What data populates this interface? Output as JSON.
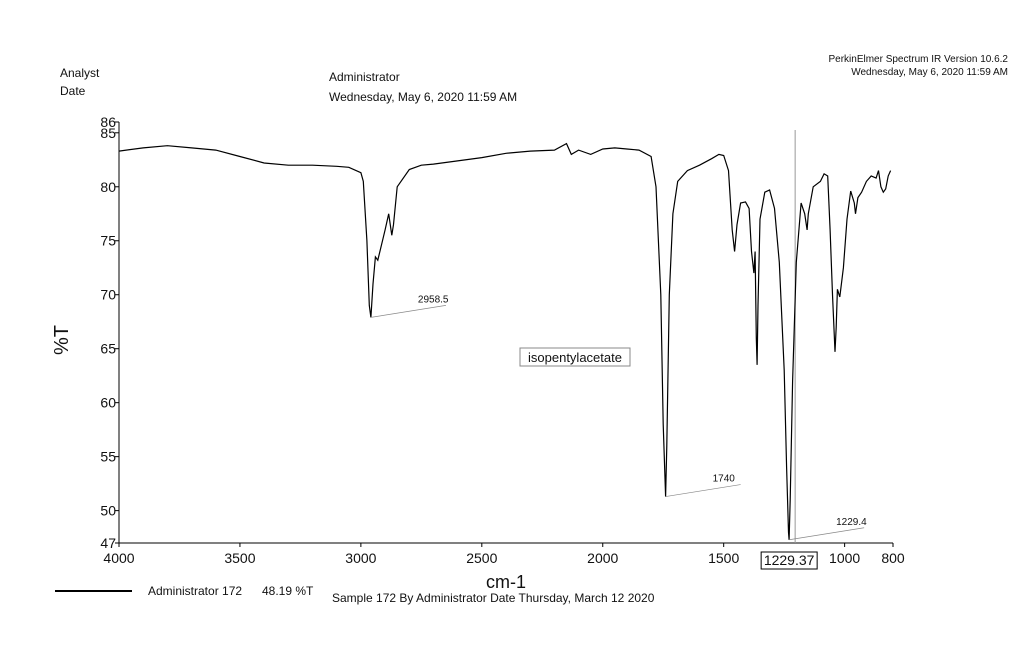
{
  "header": {
    "analyst_label": "Analyst",
    "date_label": "Date",
    "analyst": "Administrator",
    "date": "Wednesday, May 6, 2020 11:59 AM",
    "software": "PerkinElmer Spectrum IR Version 10.6.2",
    "software_date": "Wednesday, May 6, 2020 11:59 AM"
  },
  "footer": {
    "value": "48.19 %T",
    "description": "Sample 172 By Administrator Date Thursday, March 12 2020"
  },
  "chart_data": {
    "type": "line",
    "xlabel": "cm-1",
    "ylabel": "%T",
    "xlim": [
      4000,
      800
    ],
    "ylim": [
      47,
      86
    ],
    "xticks": [
      4000,
      3500,
      3000,
      2500,
      2000,
      1500,
      1000,
      800
    ],
    "yticks": [
      47,
      50,
      55,
      60,
      65,
      70,
      75,
      80,
      85,
      86
    ],
    "grid": false,
    "x": [
      4000,
      3900,
      3800,
      3700,
      3600,
      3500,
      3400,
      3300,
      3200,
      3100,
      3050,
      3000,
      2990,
      2975,
      2965,
      2958.5,
      2950,
      2940,
      2930,
      2900,
      2885,
      2872,
      2865,
      2850,
      2800,
      2750,
      2700,
      2600,
      2500,
      2400,
      2300,
      2200,
      2150,
      2130,
      2100,
      2050,
      2000,
      1950,
      1900,
      1850,
      1800,
      1780,
      1760,
      1750,
      1740,
      1735,
      1725,
      1710,
      1690,
      1650,
      1600,
      1550,
      1520,
      1500,
      1480,
      1465,
      1455,
      1445,
      1430,
      1410,
      1395,
      1385,
      1375,
      1370,
      1365,
      1362,
      1358,
      1350,
      1330,
      1310,
      1290,
      1270,
      1250,
      1240,
      1232,
      1229.4,
      1225,
      1215,
      1200,
      1180,
      1165,
      1155,
      1150,
      1130,
      1100,
      1085,
      1070,
      1060,
      1050,
      1040,
      1035,
      1030,
      1020,
      1005,
      990,
      975,
      960,
      955,
      945,
      930,
      910,
      890,
      870,
      860,
      850,
      840,
      830,
      820,
      810
    ],
    "series": [
      {
        "name": "Administrator 172",
        "color": "#000000",
        "values": [
          83.3,
          83.6,
          83.8,
          83.6,
          83.4,
          82.8,
          82.2,
          82.0,
          82.0,
          81.9,
          81.8,
          81.3,
          80.5,
          75,
          69,
          67.9,
          71,
          73.5,
          73.2,
          76,
          77.5,
          75.5,
          76.5,
          80,
          81.6,
          82.0,
          82.1,
          82.4,
          82.7,
          83.1,
          83.3,
          83.4,
          84.0,
          83.0,
          83.4,
          83.0,
          83.5,
          83.6,
          83.5,
          83.4,
          82.8,
          80,
          70,
          58,
          51.3,
          56,
          70,
          77.5,
          80.5,
          81.5,
          82,
          82.6,
          83.0,
          82.9,
          81.5,
          76,
          74,
          76.5,
          78.5,
          78.6,
          78,
          74,
          72,
          74,
          66,
          63.5,
          69,
          77,
          79.5,
          79.7,
          78,
          73,
          63,
          54,
          48,
          47.3,
          51,
          62,
          73,
          78.5,
          77.5,
          76,
          77.5,
          80,
          80.5,
          81.2,
          81,
          76,
          70,
          64.7,
          67,
          70.5,
          69.8,
          72.5,
          77,
          79.6,
          78.5,
          77.5,
          79,
          79.5,
          80.5,
          81,
          80.8,
          81.5,
          80,
          79.5,
          79.8,
          81,
          81.5
        ]
      }
    ],
    "peaks": [
      {
        "x": 2958.5,
        "y": 67.9
      },
      {
        "x": 1740,
        "y": 51.3
      },
      {
        "x": 1229.4,
        "y": 47.3
      }
    ],
    "cursor": {
      "x": 1229.37
    },
    "annotations": [
      "isopentylacetate"
    ]
  }
}
